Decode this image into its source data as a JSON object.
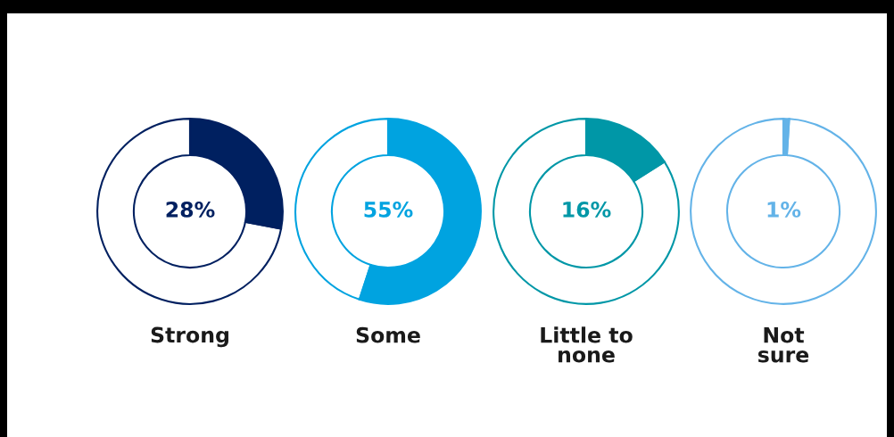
{
  "chart_data": [
    {
      "type": "donut",
      "xlabel": "Strong",
      "categories": [
        null,
        null
      ],
      "values": [
        28,
        72
      ],
      "colors": [
        "#002060",
        "#ffffff"
      ],
      "annotations": [
        "28%"
      ]
    },
    {
      "type": "donut",
      "xlabel": "Some",
      "categories": [
        null,
        null
      ],
      "values": [
        55,
        45
      ],
      "colors": [
        "#00a3e0",
        "#ffffff"
      ],
      "annotations": [
        "55%"
      ]
    },
    {
      "type": "donut",
      "xlabel": "Little to\nnone",
      "categories": [
        null,
        null
      ],
      "values": [
        16,
        84
      ],
      "colors": [
        "#0097a7",
        "#ffffff"
      ],
      "annotations": [
        "16%"
      ]
    },
    {
      "type": "donut",
      "xlabel": "Not\nsure",
      "categories": [
        null,
        null
      ],
      "values": [
        1,
        99
      ],
      "colors": [
        "#63b3e8",
        "#ffffff"
      ],
      "annotations": [
        "1%"
      ]
    }
  ]
}
